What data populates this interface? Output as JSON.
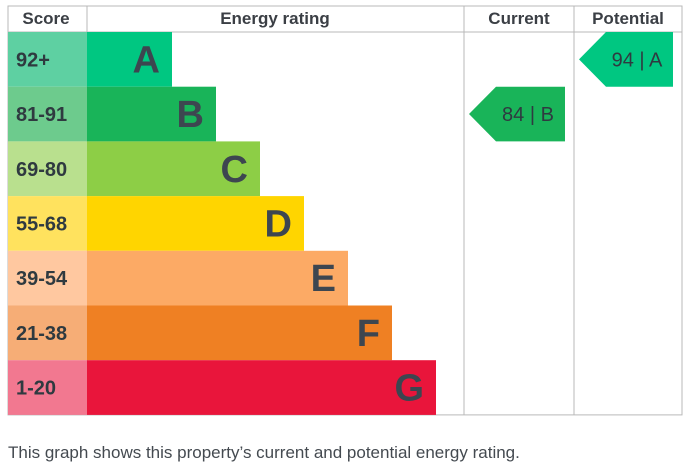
{
  "chart_data": {
    "type": "bar",
    "headers": {
      "score": "Score",
      "rating": "Energy rating",
      "current": "Current",
      "potential": "Potential"
    },
    "bands": [
      {
        "score": "92+",
        "letter": "A",
        "color": "#00c781",
        "score_color": "#5ed0a2"
      },
      {
        "score": "81-91",
        "letter": "B",
        "color": "#19b459",
        "score_color": "#6dcb8d"
      },
      {
        "score": "69-80",
        "letter": "C",
        "color": "#8dce46",
        "score_color": "#b9e08e"
      },
      {
        "score": "55-68",
        "letter": "D",
        "color": "#ffd500",
        "score_color": "#ffe25e"
      },
      {
        "score": "39-54",
        "letter": "E",
        "color": "#fcaa65",
        "score_color": "#ffc8a0"
      },
      {
        "score": "21-38",
        "letter": "F",
        "color": "#ef8023",
        "score_color": "#f6ad76"
      },
      {
        "score": "1-20",
        "letter": "G",
        "color": "#e9153b",
        "score_color": "#f27890"
      }
    ],
    "current": {
      "value": 84,
      "letter": "B",
      "label": "84 | B",
      "color": "#19b459"
    },
    "potential": {
      "value": 94,
      "letter": "A",
      "label": "94 | A",
      "color": "#00c781"
    }
  },
  "caption": "This graph shows this property’s current and potential energy rating."
}
